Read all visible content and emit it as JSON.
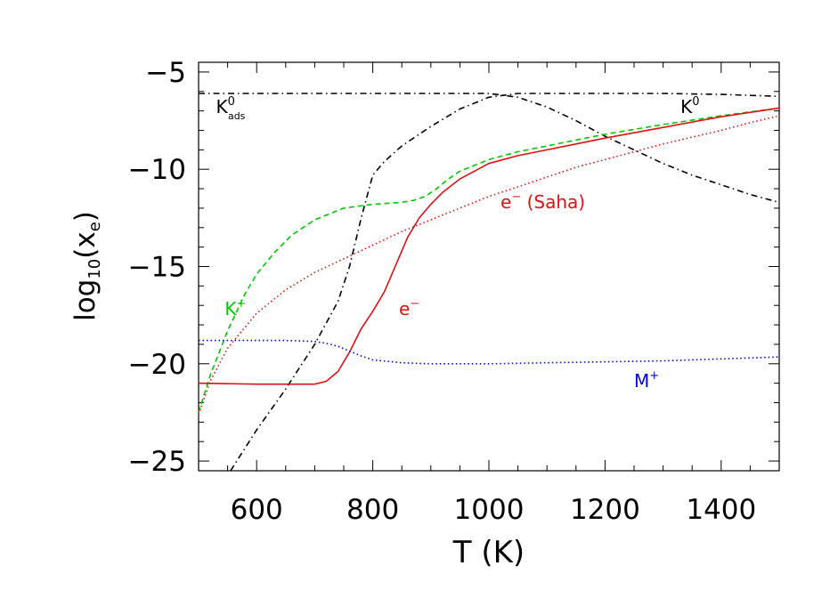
{
  "chart_data": {
    "type": "line",
    "xlabel": "T (K)",
    "ylabel": {
      "main": "log",
      "sub": "10",
      "arg_open": "(x",
      "arg_sub": "e",
      "arg_close": ")"
    },
    "xlim": [
      500,
      1500
    ],
    "ylim": [
      -25.5,
      -4.5
    ],
    "xticks": [
      600,
      800,
      1000,
      1200,
      1400
    ],
    "yticks": [
      -5,
      -10,
      -15,
      -20,
      -25
    ],
    "x_minor_step": 50,
    "y_minor_step": 1,
    "grid": false,
    "series": [
      {
        "key": "k0_ads",
        "color": "#000000",
        "dash": "7,4,1.5,4",
        "x": [
          500,
          600,
          700,
          750,
          800,
          850,
          900,
          950,
          1000,
          1050,
          1100,
          1150,
          1200,
          1250,
          1300,
          1350,
          1400,
          1450,
          1500
        ],
        "y": [
          -6.1,
          -6.1,
          -6.1,
          -6.1,
          -6.1,
          -6.1,
          -6.1,
          -6.1,
          -6.1,
          -6.3,
          -6.8,
          -7.5,
          -8.3,
          -9.0,
          -9.7,
          -10.3,
          -10.8,
          -11.3,
          -11.7
        ]
      },
      {
        "key": "k0",
        "color": "#000000",
        "dash": "7,4,1.5,4",
        "x": [
          555,
          600,
          650,
          700,
          740,
          760,
          780,
          800,
          820,
          850,
          900,
          950,
          1000,
          1050,
          1100,
          1200,
          1300,
          1400,
          1500
        ],
        "y": [
          -25.5,
          -23.4,
          -21.3,
          -19.0,
          -16.8,
          -15.0,
          -12.5,
          -10.3,
          -9.6,
          -8.8,
          -7.8,
          -6.9,
          -6.3,
          -6.1,
          -6.1,
          -6.1,
          -6.1,
          -6.15,
          -6.25
        ]
      },
      {
        "key": "k_plus",
        "color": "#00c800",
        "dash": "6,4",
        "x": [
          500,
          520,
          550,
          580,
          600,
          630,
          660,
          700,
          750,
          800,
          850,
          870,
          890,
          910,
          930,
          950,
          1000,
          1050,
          1100,
          1150,
          1200,
          1300,
          1400,
          1500
        ],
        "y": [
          -22.5,
          -20.6,
          -18.3,
          -16.4,
          -15.4,
          -14.3,
          -13.4,
          -12.6,
          -12.0,
          -11.8,
          -11.7,
          -11.6,
          -11.4,
          -11.0,
          -10.5,
          -10.1,
          -9.5,
          -9.1,
          -8.8,
          -8.5,
          -8.2,
          -7.7,
          -7.25,
          -6.85
        ]
      },
      {
        "key": "e_minus",
        "color": "#e01010",
        "dash": "",
        "x": [
          500,
          600,
          700,
          720,
          740,
          760,
          780,
          800,
          820,
          840,
          860,
          880,
          900,
          920,
          950,
          1000,
          1050,
          1100,
          1150,
          1200,
          1300,
          1400,
          1500
        ],
        "y": [
          -21.0,
          -21.05,
          -21.05,
          -20.9,
          -20.4,
          -19.4,
          -18.2,
          -17.3,
          -16.3,
          -14.9,
          -13.5,
          -12.5,
          -11.8,
          -11.2,
          -10.5,
          -9.7,
          -9.3,
          -9.0,
          -8.7,
          -8.4,
          -7.85,
          -7.3,
          -6.85
        ]
      },
      {
        "key": "e_saha",
        "color": "#e01010",
        "dash": "1.5,3",
        "x": [
          500,
          520,
          550,
          600,
          650,
          700,
          750,
          800,
          850,
          900,
          950,
          1000,
          1050,
          1100,
          1150,
          1200,
          1250,
          1300,
          1350,
          1400,
          1450,
          1500
        ],
        "y": [
          -22.6,
          -20.9,
          -19.2,
          -17.4,
          -16.2,
          -15.3,
          -14.6,
          -13.9,
          -13.2,
          -12.6,
          -12.0,
          -11.4,
          -10.9,
          -10.4,
          -9.9,
          -9.5,
          -9.1,
          -8.7,
          -8.35,
          -8.0,
          -7.6,
          -7.25
        ]
      },
      {
        "key": "m_plus",
        "color": "#0000e6",
        "dash": "1.5,3",
        "x": [
          500,
          550,
          600,
          650,
          700,
          720,
          740,
          760,
          780,
          800,
          850,
          900,
          1000,
          1100,
          1200,
          1300,
          1400,
          1500
        ],
        "y": [
          -18.8,
          -18.8,
          -18.8,
          -18.8,
          -18.85,
          -18.95,
          -19.1,
          -19.35,
          -19.6,
          -19.8,
          -19.95,
          -20.0,
          -20.0,
          -19.95,
          -19.9,
          -19.85,
          -19.75,
          -19.65
        ]
      }
    ],
    "labels": [
      {
        "key": "k0_ads",
        "text": "K",
        "sup": "0",
        "sub": "ads",
        "color": "#000000",
        "x": 530,
        "y": -7.1
      },
      {
        "key": "k0",
        "text": "K",
        "sup": "0",
        "sub": "",
        "color": "#000000",
        "x": 1330,
        "y": -7.1
      },
      {
        "key": "k_plus",
        "text": "K",
        "sup": "+",
        "sub": "",
        "color": "#00c800",
        "x": 545,
        "y": -17.5
      },
      {
        "key": "e_minus",
        "text": "e",
        "sup": "−",
        "sub": "",
        "color": "#e01010",
        "x": 845,
        "y": -17.5
      },
      {
        "key": "e_saha",
        "text": "e",
        "sup": "−",
        "sub": "",
        "suffix": " (Saha)",
        "color": "#e01010",
        "x": 1020,
        "y": -12.0
      },
      {
        "key": "m_plus",
        "text": "M",
        "sup": "+",
        "sub": "",
        "color": "#0000e6",
        "x": 1250,
        "y": -21.2
      }
    ]
  }
}
